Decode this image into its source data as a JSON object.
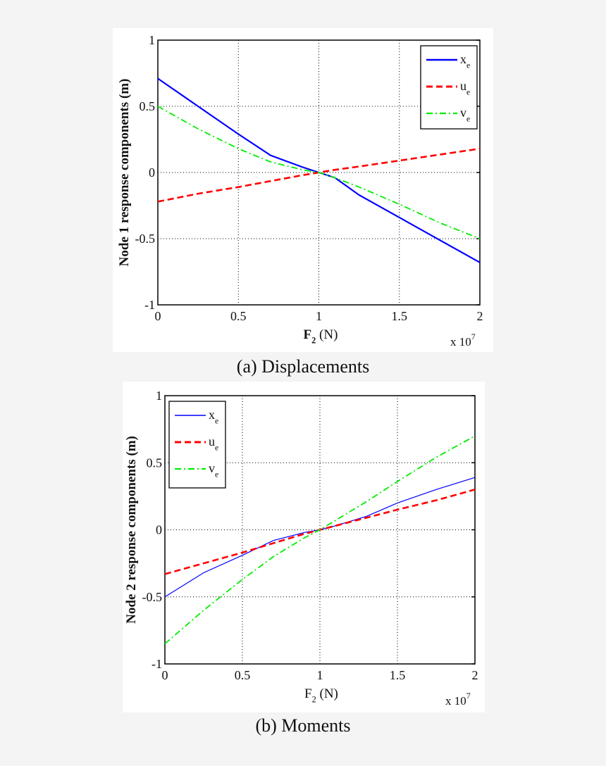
{
  "chart_data": [
    {
      "type": "line",
      "caption": "(a) Displacements",
      "ylabel": "Node 1 response components (m)",
      "xlabel": {
        "base": "F",
        "sub": "2",
        "rest": " (N)"
      },
      "x_multiplier": {
        "base": "x 10",
        "exp": "7"
      },
      "xlim": [
        0,
        2
      ],
      "ylim": [
        -1,
        1
      ],
      "xticks": [
        "0",
        "0.5",
        "1",
        "1.5",
        "2"
      ],
      "yticks": [
        "1",
        "0.5",
        "0",
        "-0.5",
        "-1"
      ],
      "grid": true,
      "legend_position": "top-right",
      "x": [
        0,
        0.25,
        0.5,
        0.7,
        0.9,
        1.0,
        1.1,
        1.25,
        1.5,
        1.75,
        2.0
      ],
      "series": [
        {
          "base": "x",
          "sub": "e",
          "color": "#0000ff",
          "style": "solid",
          "values": [
            0.71,
            0.5,
            0.29,
            0.13,
            0.04,
            0,
            -0.04,
            -0.17,
            -0.34,
            -0.51,
            -0.68
          ]
        },
        {
          "base": "u",
          "sub": "e",
          "color": "#ff0000",
          "style": "dashed",
          "values": [
            -0.22,
            -0.16,
            -0.11,
            -0.065,
            -0.02,
            0,
            0.02,
            0.045,
            0.09,
            0.135,
            0.18
          ]
        },
        {
          "base": "v",
          "sub": "e",
          "color": "#00ee00",
          "style": "dashdot",
          "values": [
            0.5,
            0.33,
            0.18,
            0.08,
            0.02,
            0,
            -0.04,
            -0.11,
            -0.24,
            -0.38,
            -0.5
          ]
        }
      ]
    },
    {
      "type": "line",
      "caption": "(b) Moments",
      "ylabel": "Node 2 response components (m)",
      "xlabel": {
        "base": "F",
        "sub": "2",
        "rest": " (N)"
      },
      "x_multiplier": {
        "base": "x 10",
        "exp": "7"
      },
      "xlim": [
        0,
        2
      ],
      "ylim": [
        -1,
        1
      ],
      "xticks": [
        "0",
        "0.5",
        "1",
        "1.5",
        "2"
      ],
      "yticks": [
        "1",
        "0.5",
        "0",
        "-0.5",
        "-1"
      ],
      "grid": true,
      "legend_position": "top-left",
      "x": [
        0,
        0.25,
        0.5,
        0.7,
        0.9,
        1.0,
        1.1,
        1.3,
        1.5,
        1.75,
        2.0
      ],
      "series": [
        {
          "base": "x",
          "sub": "e",
          "color": "#0000ff",
          "style": "thin",
          "values": [
            -0.5,
            -0.32,
            -0.19,
            -0.08,
            -0.02,
            0,
            0.03,
            0.1,
            0.2,
            0.3,
            0.39
          ]
        },
        {
          "base": "u",
          "sub": "e",
          "color": "#ff0000",
          "style": "dashed",
          "values": [
            -0.33,
            -0.25,
            -0.17,
            -0.1,
            -0.03,
            0,
            0.03,
            0.09,
            0.15,
            0.22,
            0.3
          ]
        },
        {
          "base": "v",
          "sub": "e",
          "color": "#00ee00",
          "style": "dashdot",
          "values": [
            -0.85,
            -0.6,
            -0.37,
            -0.2,
            -0.06,
            0,
            0.07,
            0.21,
            0.36,
            0.54,
            0.7
          ]
        }
      ]
    }
  ]
}
